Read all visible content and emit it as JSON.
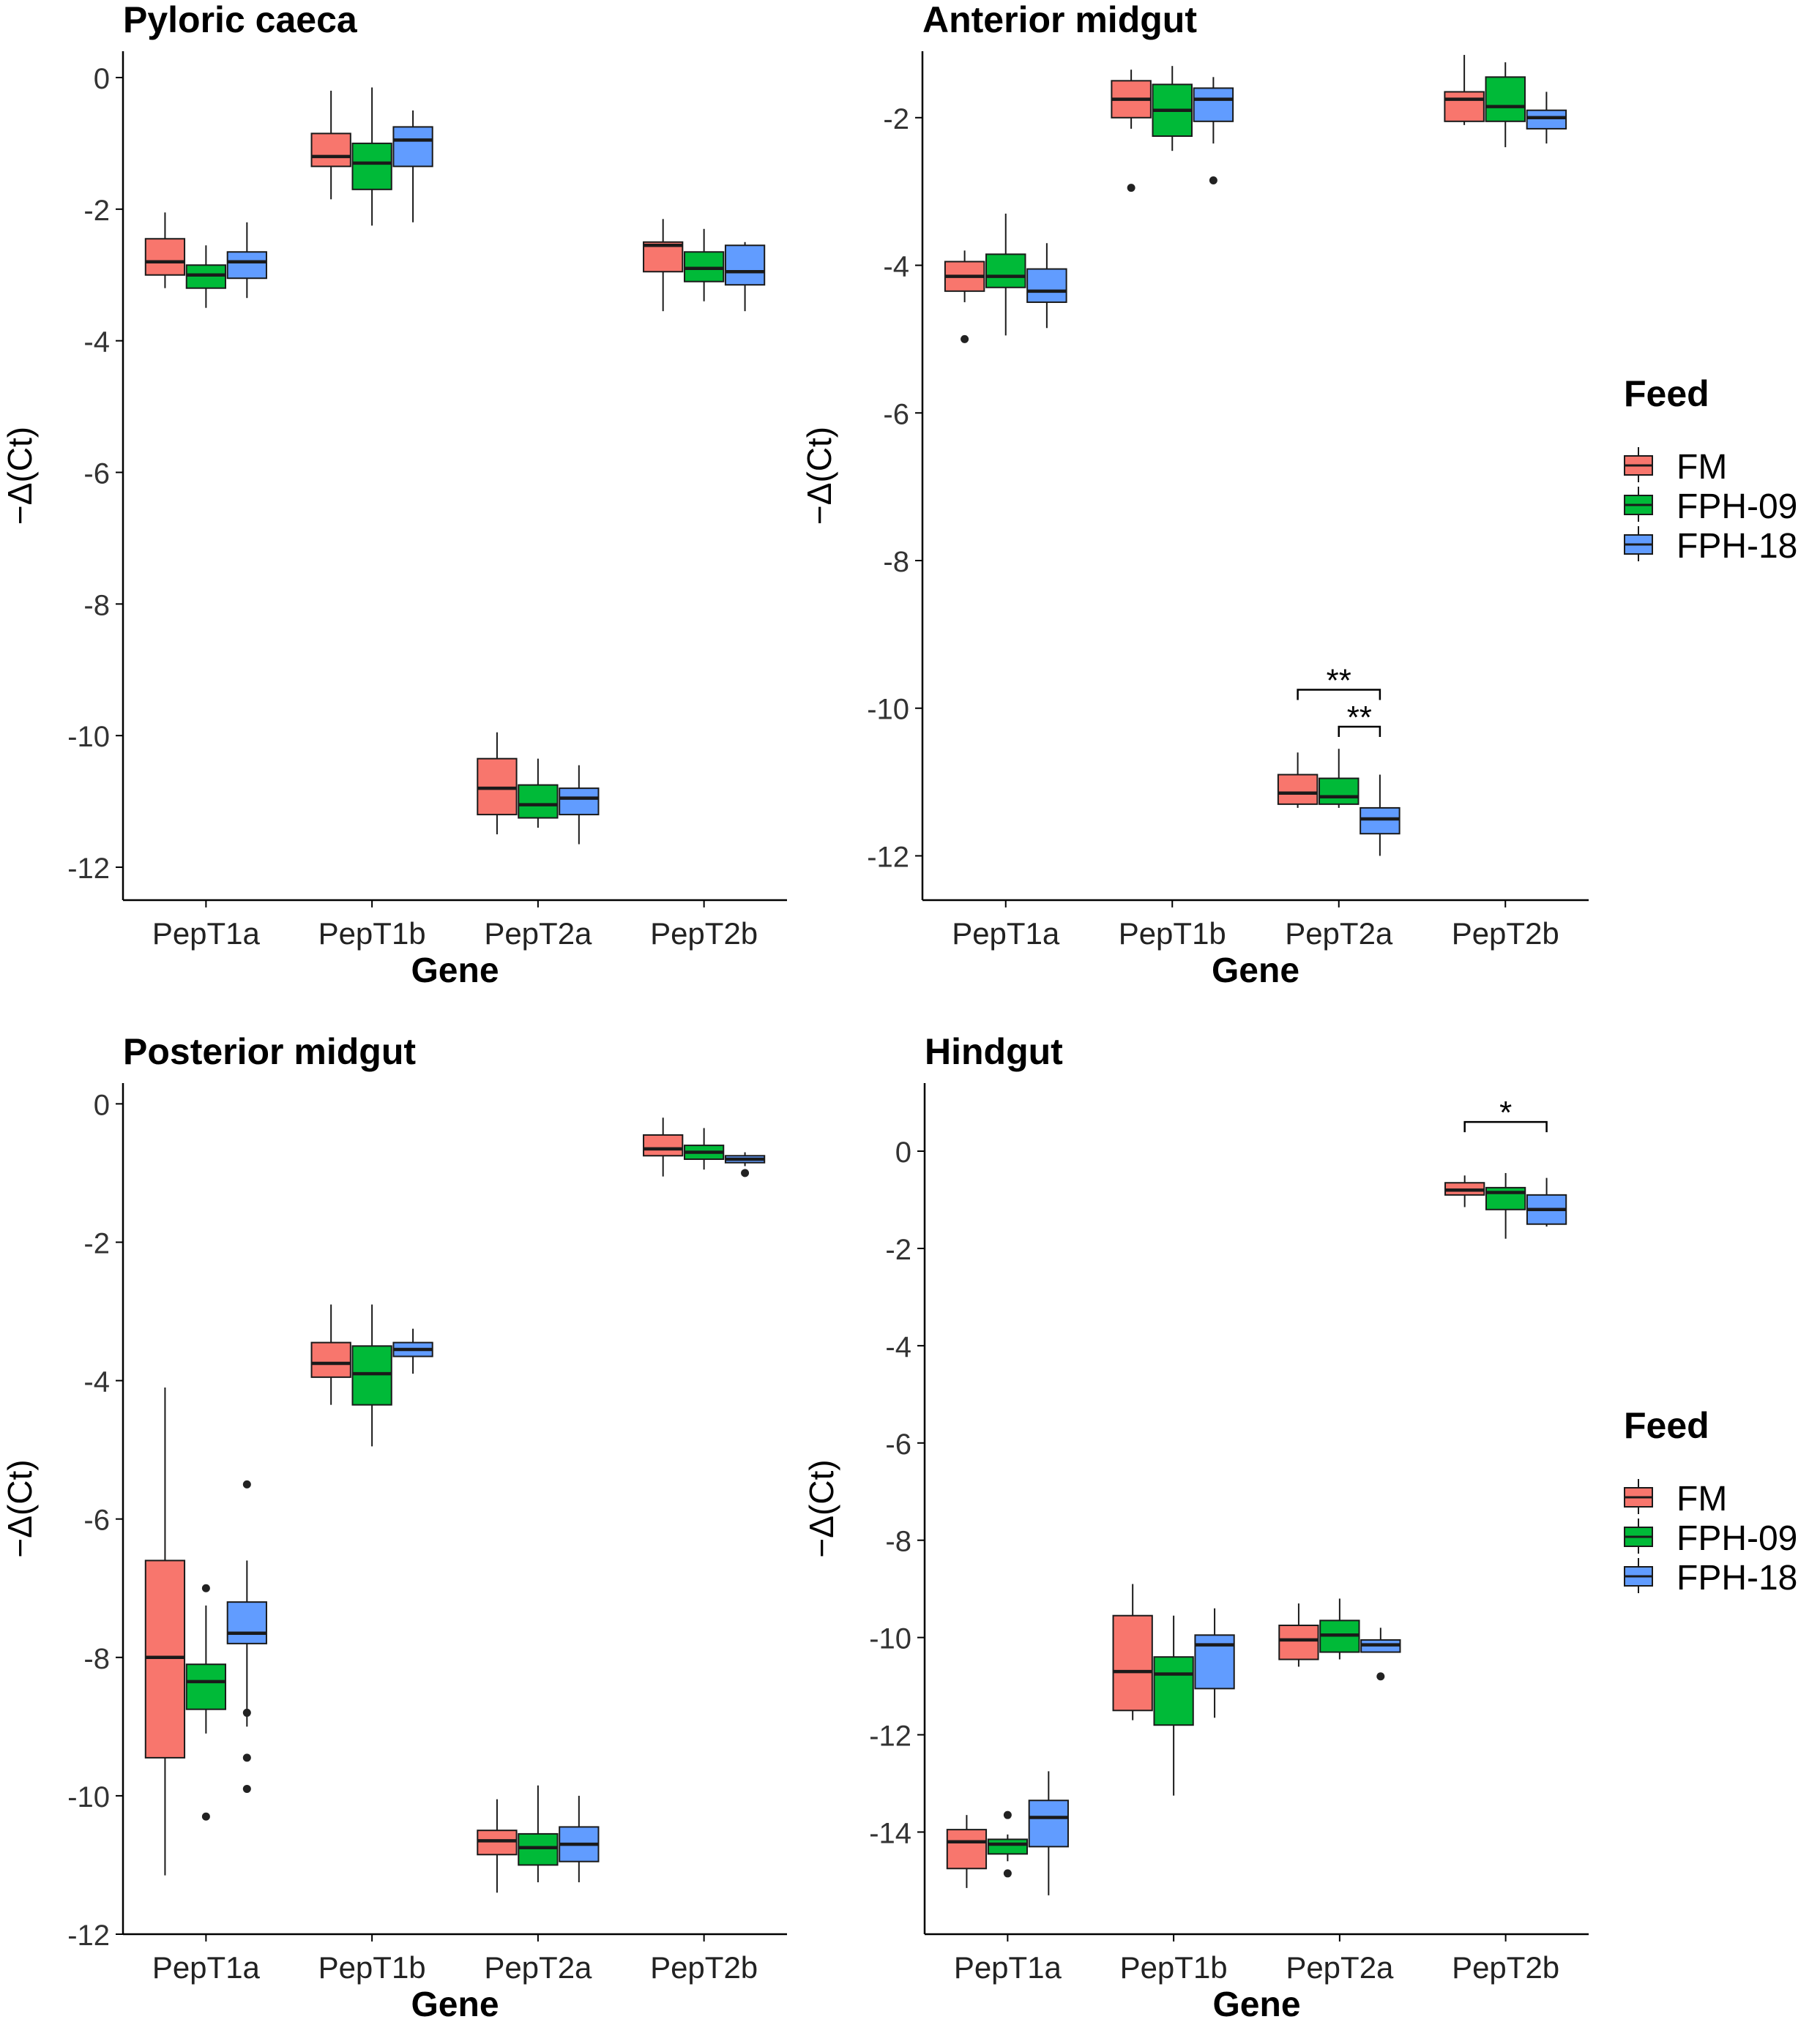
{
  "colors": {
    "FM": "#F8766D",
    "FPH-09": "#00BA38",
    "FPH-18": "#619CFF",
    "stroke": "#1a1a1a",
    "axis": "#000000"
  },
  "legend": {
    "title": "Feed",
    "entries": [
      "FM",
      "FPH-09",
      "FPH-18"
    ]
  },
  "chart_data": [
    {
      "type": "boxplot",
      "title": "Pyloric caeca",
      "xlabel": "Gene",
      "ylabel": "−Δ(Ct)",
      "categories": [
        "PepT1a",
        "PepT1b",
        "PepT2a",
        "PepT2b"
      ],
      "ylim": [
        -12.5,
        0.4
      ],
      "yticks": [
        0,
        -2,
        -4,
        -6,
        -8,
        -10,
        -12
      ],
      "legend": false,
      "series": [
        {
          "name": "FM",
          "boxes": [
            {
              "low": -3.2,
              "q1": -3.0,
              "median": -2.8,
              "q3": -2.45,
              "high": -2.05,
              "outliers": []
            },
            {
              "low": -1.85,
              "q1": -1.35,
              "median": -1.2,
              "q3": -0.85,
              "high": -0.2,
              "outliers": []
            },
            {
              "low": -11.5,
              "q1": -11.2,
              "median": -10.8,
              "q3": -10.35,
              "high": -9.95,
              "outliers": []
            },
            {
              "low": -3.55,
              "q1": -2.95,
              "median": -2.55,
              "q3": -2.5,
              "high": -2.15,
              "outliers": []
            }
          ]
        },
        {
          "name": "FPH-09",
          "boxes": [
            {
              "low": -3.5,
              "q1": -3.2,
              "median": -3.0,
              "q3": -2.85,
              "high": -2.55,
              "outliers": []
            },
            {
              "low": -2.25,
              "q1": -1.7,
              "median": -1.3,
              "q3": -1.0,
              "high": -0.15,
              "outliers": []
            },
            {
              "low": -11.4,
              "q1": -11.25,
              "median": -11.05,
              "q3": -10.75,
              "high": -10.35,
              "outliers": []
            },
            {
              "low": -3.4,
              "q1": -3.1,
              "median": -2.9,
              "q3": -2.65,
              "high": -2.3,
              "outliers": []
            }
          ]
        },
        {
          "name": "FPH-18",
          "boxes": [
            {
              "low": -3.35,
              "q1": -3.05,
              "median": -2.8,
              "q3": -2.65,
              "high": -2.2,
              "outliers": []
            },
            {
              "low": -2.2,
              "q1": -1.35,
              "median": -0.95,
              "q3": -0.75,
              "high": -0.5,
              "outliers": []
            },
            {
              "low": -11.65,
              "q1": -11.2,
              "median": -10.95,
              "q3": -10.8,
              "high": -10.45,
              "outliers": []
            },
            {
              "low": -3.55,
              "q1": -3.15,
              "median": -2.95,
              "q3": -2.55,
              "high": -2.5,
              "outliers": []
            }
          ]
        }
      ],
      "annotations": []
    },
    {
      "type": "boxplot",
      "title": "Anterior midgut",
      "xlabel": "Gene",
      "ylabel": "−Δ(Ct)",
      "categories": [
        "PepT1a",
        "PepT1b",
        "PepT2a",
        "PepT2b"
      ],
      "ylim": [
        -12.6,
        -1.1
      ],
      "yticks": [
        -2,
        -4,
        -6,
        -8,
        -10,
        -12
      ],
      "legend": true,
      "series": [
        {
          "name": "FM",
          "boxes": [
            {
              "low": -4.5,
              "q1": -4.35,
              "median": -4.15,
              "q3": -3.95,
              "high": -3.8,
              "outliers": [
                -5.0
              ]
            },
            {
              "low": -2.15,
              "q1": -2.0,
              "median": -1.75,
              "q3": -1.5,
              "high": -1.35,
              "outliers": [
                -2.95
              ]
            },
            {
              "low": -11.35,
              "q1": -11.3,
              "median": -11.15,
              "q3": -10.9,
              "high": -10.6,
              "outliers": []
            },
            {
              "low": -2.1,
              "q1": -2.05,
              "median": -1.75,
              "q3": -1.65,
              "high": -1.15,
              "outliers": []
            }
          ]
        },
        {
          "name": "FPH-09",
          "boxes": [
            {
              "low": -4.95,
              "q1": -4.3,
              "median": -4.15,
              "q3": -3.85,
              "high": -3.3,
              "outliers": []
            },
            {
              "low": -2.45,
              "q1": -2.25,
              "median": -1.9,
              "q3": -1.55,
              "high": -1.3,
              "outliers": []
            },
            {
              "low": -11.35,
              "q1": -11.3,
              "median": -11.2,
              "q3": -10.95,
              "high": -10.55,
              "outliers": []
            },
            {
              "low": -2.4,
              "q1": -2.05,
              "median": -1.85,
              "q3": -1.45,
              "high": -1.25,
              "outliers": []
            }
          ]
        },
        {
          "name": "FPH-18",
          "boxes": [
            {
              "low": -4.85,
              "q1": -4.5,
              "median": -4.35,
              "q3": -4.05,
              "high": -3.7,
              "outliers": []
            },
            {
              "low": -2.35,
              "q1": -2.05,
              "median": -1.75,
              "q3": -1.6,
              "high": -1.45,
              "outliers": [
                -2.85
              ]
            },
            {
              "low": -12.0,
              "q1": -11.7,
              "median": -11.5,
              "q3": -11.35,
              "high": -10.9,
              "outliers": []
            },
            {
              "low": -2.35,
              "q1": -2.15,
              "median": -2.0,
              "q3": -1.9,
              "high": -1.65,
              "outliers": []
            }
          ]
        }
      ],
      "annotations": [
        {
          "label": "**",
          "category": 2,
          "from": "FM",
          "to": "FPH-18",
          "y": -9.75
        },
        {
          "label": "**",
          "category": 2,
          "from": "FPH-09",
          "to": "FPH-18",
          "y": -10.25
        }
      ]
    },
    {
      "type": "boxplot",
      "title": "Posterior midgut",
      "xlabel": "Gene",
      "ylabel": "−Δ(Ct)",
      "categories": [
        "PepT1a",
        "PepT1b",
        "PepT2a",
        "PepT2b"
      ],
      "ylim": [
        -12.0,
        0.3
      ],
      "yticks": [
        0,
        -2,
        -4,
        -6,
        -8,
        -10,
        -12
      ],
      "legend": false,
      "series": [
        {
          "name": "FM",
          "boxes": [
            {
              "low": -11.15,
              "q1": -9.45,
              "median": -8.0,
              "q3": -6.6,
              "high": -4.1,
              "outliers": []
            },
            {
              "low": -4.35,
              "q1": -3.95,
              "median": -3.75,
              "q3": -3.45,
              "high": -2.9,
              "outliers": []
            },
            {
              "low": -11.4,
              "q1": -10.85,
              "median": -10.65,
              "q3": -10.5,
              "high": -10.05,
              "outliers": []
            },
            {
              "low": -1.05,
              "q1": -0.75,
              "median": -0.65,
              "q3": -0.45,
              "high": -0.2,
              "outliers": []
            }
          ]
        },
        {
          "name": "FPH-09",
          "boxes": [
            {
              "low": -9.1,
              "q1": -8.75,
              "median": -8.35,
              "q3": -8.1,
              "high": -7.25,
              "outliers": [
                -7.0,
                -10.3
              ]
            },
            {
              "low": -4.95,
              "q1": -4.35,
              "median": -3.9,
              "q3": -3.5,
              "high": -2.9,
              "outliers": []
            },
            {
              "low": -11.25,
              "q1": -11.0,
              "median": -10.75,
              "q3": -10.55,
              "high": -9.85,
              "outliers": []
            },
            {
              "low": -0.95,
              "q1": -0.8,
              "median": -0.7,
              "q3": -0.6,
              "high": -0.35,
              "outliers": []
            }
          ]
        },
        {
          "name": "FPH-18",
          "boxes": [
            {
              "low": -9.0,
              "q1": -7.8,
              "median": -7.65,
              "q3": -7.2,
              "high": -6.6,
              "outliers": [
                -5.5,
                -8.8,
                -9.45,
                -9.9
              ]
            },
            {
              "low": -3.9,
              "q1": -3.65,
              "median": -3.55,
              "q3": -3.45,
              "high": -3.25,
              "outliers": []
            },
            {
              "low": -11.25,
              "q1": -10.95,
              "median": -10.7,
              "q3": -10.45,
              "high": -10.0,
              "outliers": []
            },
            {
              "low": -0.9,
              "q1": -0.85,
              "median": -0.8,
              "q3": -0.75,
              "high": -0.7,
              "outliers": [
                -1.0
              ]
            }
          ]
        }
      ],
      "annotations": []
    },
    {
      "type": "boxplot",
      "title": "Hindgut",
      "xlabel": "Gene",
      "ylabel": "−Δ(Ct)",
      "categories": [
        "PepT1a",
        "PepT1b",
        "PepT2a",
        "PepT2b"
      ],
      "ylim": [
        -16.1,
        1.4
      ],
      "yticks": [
        0,
        -2,
        -4,
        -6,
        -8,
        -10,
        -12,
        -14
      ],
      "legend": true,
      "series": [
        {
          "name": "FM",
          "boxes": [
            {
              "low": -15.15,
              "q1": -14.75,
              "median": -14.2,
              "q3": -13.95,
              "high": -13.65,
              "outliers": []
            },
            {
              "low": -11.7,
              "q1": -11.5,
              "median": -10.7,
              "q3": -9.55,
              "high": -8.9,
              "outliers": []
            },
            {
              "low": -10.6,
              "q1": -10.45,
              "median": -10.05,
              "q3": -9.75,
              "high": -9.3,
              "outliers": []
            },
            {
              "low": -1.15,
              "q1": -0.9,
              "median": -0.8,
              "q3": -0.65,
              "high": -0.5,
              "outliers": []
            }
          ]
        },
        {
          "name": "FPH-09",
          "boxes": [
            {
              "low": -14.6,
              "q1": -14.45,
              "median": -14.25,
              "q3": -14.15,
              "high": -14.05,
              "outliers": [
                -13.65,
                -14.85
              ]
            },
            {
              "low": -13.25,
              "q1": -11.8,
              "median": -10.75,
              "q3": -10.4,
              "high": -9.55,
              "outliers": []
            },
            {
              "low": -10.45,
              "q1": -10.3,
              "median": -9.95,
              "q3": -9.65,
              "high": -9.2,
              "outliers": []
            },
            {
              "low": -1.8,
              "q1": -1.2,
              "median": -0.85,
              "q3": -0.75,
              "high": -0.45,
              "outliers": []
            }
          ]
        },
        {
          "name": "FPH-18",
          "boxes": [
            {
              "low": -15.3,
              "q1": -14.3,
              "median": -13.7,
              "q3": -13.35,
              "high": -12.75,
              "outliers": []
            },
            {
              "low": -11.65,
              "q1": -11.05,
              "median": -10.15,
              "q3": -9.95,
              "high": -9.4,
              "outliers": []
            },
            {
              "low": -10.3,
              "q1": -10.3,
              "median": -10.15,
              "q3": -10.05,
              "high": -9.8,
              "outliers": [
                -10.8
              ]
            },
            {
              "low": -1.55,
              "q1": -1.5,
              "median": -1.2,
              "q3": -0.9,
              "high": -0.55,
              "outliers": []
            }
          ]
        }
      ],
      "annotations": [
        {
          "label": "*",
          "category": 3,
          "from": "FM",
          "to": "FPH-18",
          "y": 0.6
        }
      ]
    }
  ]
}
